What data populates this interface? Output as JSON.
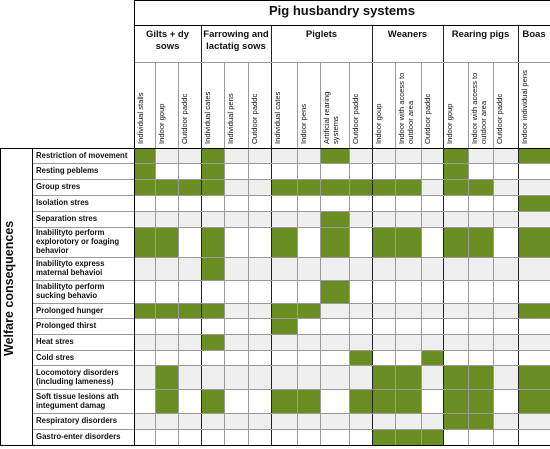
{
  "header": {
    "title": "Pig husbandry systems",
    "side_label": "Welfare consequences"
  },
  "colors": {
    "filled": "#6b8e23",
    "header_bg": "#efefef",
    "cell_bg": "#efefef",
    "cell_alt": "#ffffff"
  },
  "groups": [
    {
      "label": "Gilts + dy sows"
    },
    {
      "label": "Farrowing and lactatig sows"
    },
    {
      "label": "Piglets"
    },
    {
      "label": "Weaners"
    },
    {
      "label": "Rearing pigs"
    },
    {
      "label": "Boas"
    }
  ],
  "columns": [
    {
      "label": "Individual stalls"
    },
    {
      "label": "Indoor goup"
    },
    {
      "label": "Outdoor paddc"
    },
    {
      "label": "Individual cates"
    },
    {
      "label": "Individual pens"
    },
    {
      "label": "Outdoor paddc"
    },
    {
      "label": "Individual cates"
    },
    {
      "label": "Indoor pens"
    },
    {
      "label": "Artificial rearing systems"
    },
    {
      "label": "Outdoor paddc"
    },
    {
      "label": "Indoor goup"
    },
    {
      "label": "Indoor with access to outdoor area"
    },
    {
      "label": "Outdoor paddc"
    },
    {
      "label": "Indoor goup"
    },
    {
      "label": "Indoor with access to outdoor area"
    },
    {
      "label": "Outdoor paddc"
    },
    {
      "label": "Indoor individual pens"
    }
  ],
  "rows": [
    {
      "label": "Restriction of movement",
      "cells": [
        1,
        0,
        0,
        1,
        0,
        0,
        0,
        0,
        1,
        0,
        0,
        0,
        0,
        1,
        0,
        0,
        1
      ]
    },
    {
      "label": "Resting peblems",
      "cells": [
        1,
        0,
        0,
        1,
        0,
        0,
        0,
        0,
        0,
        0,
        0,
        0,
        0,
        1,
        0,
        0,
        0
      ]
    },
    {
      "label": "Group stres",
      "cells": [
        1,
        1,
        1,
        1,
        0,
        0,
        1,
        1,
        1,
        1,
        1,
        1,
        0,
        1,
        1,
        0,
        0
      ]
    },
    {
      "label": "Isolation stres",
      "cells": [
        0,
        0,
        0,
        0,
        0,
        0,
        0,
        0,
        0,
        0,
        0,
        0,
        0,
        0,
        0,
        0,
        1
      ]
    },
    {
      "label": "Separation stres",
      "cells": [
        0,
        0,
        0,
        0,
        0,
        0,
        0,
        0,
        1,
        0,
        0,
        0,
        0,
        0,
        0,
        0,
        0
      ]
    },
    {
      "label": "Inabilityto perform explorotory or foaging behavior",
      "cells": [
        1,
        1,
        0,
        1,
        0,
        0,
        1,
        0,
        1,
        0,
        1,
        1,
        0,
        1,
        1,
        0,
        1
      ]
    },
    {
      "label": "Inabilityto express maternal behavioi",
      "cells": [
        0,
        0,
        0,
        1,
        0,
        0,
        0,
        0,
        0,
        0,
        0,
        0,
        0,
        0,
        0,
        0,
        0
      ]
    },
    {
      "label": "Inabilityto perform sucking behavio",
      "cells": [
        0,
        0,
        0,
        0,
        0,
        0,
        0,
        0,
        1,
        0,
        0,
        0,
        0,
        0,
        0,
        0,
        0
      ]
    },
    {
      "label": "Prolonged hunger",
      "cells": [
        1,
        1,
        1,
        1,
        0,
        0,
        1,
        1,
        0,
        0,
        0,
        0,
        0,
        0,
        0,
        0,
        1
      ]
    },
    {
      "label": "Prolonged thirst",
      "cells": [
        0,
        0,
        0,
        0,
        0,
        0,
        1,
        0,
        0,
        0,
        0,
        0,
        0,
        0,
        0,
        0,
        0
      ]
    },
    {
      "label": "Heat stres",
      "cells": [
        0,
        0,
        0,
        1,
        0,
        0,
        0,
        0,
        0,
        0,
        0,
        0,
        0,
        0,
        0,
        0,
        0
      ]
    },
    {
      "label": "Cold stres",
      "cells": [
        0,
        0,
        0,
        0,
        0,
        0,
        0,
        0,
        0,
        1,
        0,
        0,
        1,
        0,
        0,
        0,
        0
      ]
    },
    {
      "label": "Locomotory disorders (including lameness)",
      "cells": [
        0,
        1,
        0,
        0,
        0,
        0,
        0,
        0,
        0,
        0,
        1,
        1,
        0,
        1,
        1,
        0,
        1
      ]
    },
    {
      "label": "Soft tissue lesions ath integument damag",
      "cells": [
        0,
        1,
        0,
        1,
        0,
        0,
        1,
        1,
        0,
        1,
        1,
        1,
        0,
        1,
        1,
        0,
        1
      ]
    },
    {
      "label": "Respiratory disorders",
      "cells": [
        0,
        0,
        0,
        0,
        0,
        0,
        0,
        0,
        0,
        0,
        0,
        0,
        0,
        1,
        1,
        0,
        0
      ]
    },
    {
      "label": "Gastro-enter disorders",
      "cells": [
        0,
        0,
        0,
        0,
        0,
        0,
        0,
        0,
        0,
        0,
        1,
        1,
        1,
        0,
        0,
        0,
        0
      ]
    }
  ]
}
